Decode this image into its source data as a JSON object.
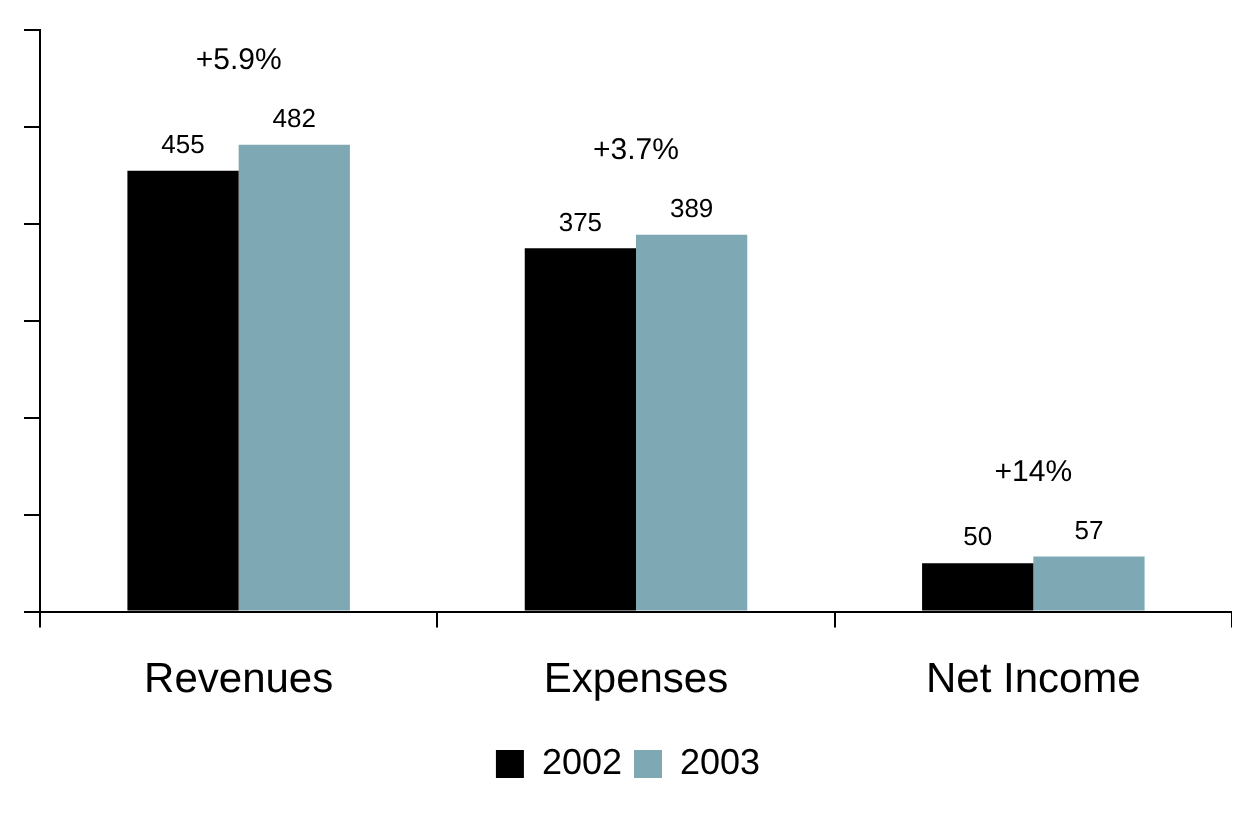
{
  "chart_data": {
    "type": "bar",
    "categories": [
      "Revenues",
      "Expenses",
      "Net Income"
    ],
    "series": [
      {
        "name": "2002",
        "color": "#000000",
        "values": [
          455,
          375,
          50
        ]
      },
      {
        "name": "2003",
        "color": "#7fa8b5",
        "values": [
          482,
          389,
          57
        ]
      }
    ],
    "ylim": [
      0,
      600
    ],
    "yticks": [
      {
        "value": 0,
        "label": null
      },
      {
        "value": 100,
        "label": null
      },
      {
        "value": 200,
        "label": null
      },
      {
        "value": 300,
        "label": null
      },
      {
        "value": 400,
        "label": null
      },
      {
        "value": 500,
        "label": null
      },
      {
        "value": 600,
        "label": null
      }
    ],
    "tick_labels": "x",
    "grid": false,
    "legend": "bottom",
    "data_labels": true,
    "annotations": [
      "+5.9%",
      "+3.7%",
      "+14%"
    ]
  }
}
